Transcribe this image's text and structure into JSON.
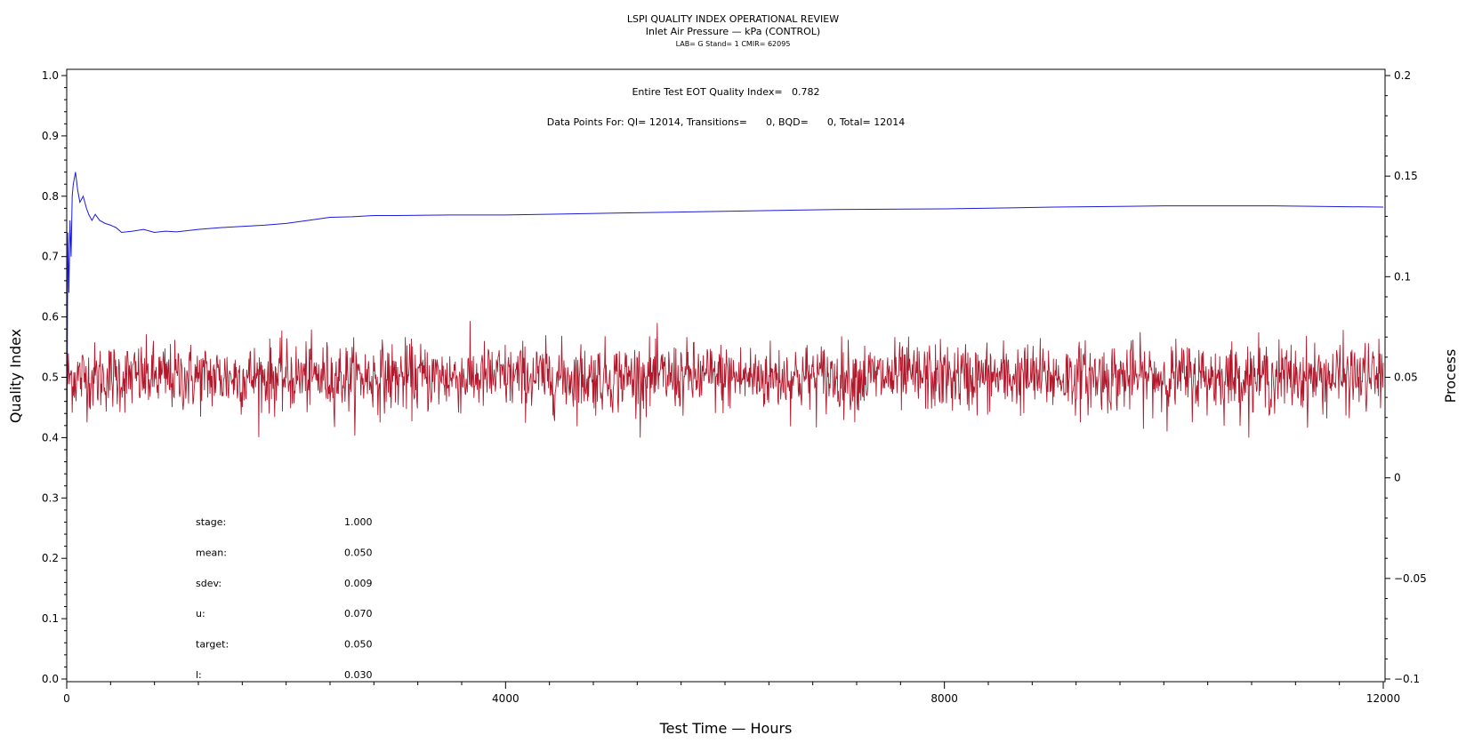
{
  "chart_data": {
    "type": "line",
    "title": "LSPI QUALITY INDEX OPERATIONAL REVIEW",
    "subtitle": "Inlet Air Pressure — kPa (CONTROL)",
    "subsubtitle": "LAB= G Stand= 1 CMIR= 62095",
    "xlabel": "Test Time — Hours",
    "ylabel": "Quality Index",
    "y2label": "Process",
    "xlim": [
      0,
      12000
    ],
    "ylim": [
      0,
      1.0
    ],
    "y2lim": [
      -0.1,
      0.2
    ],
    "x_ticks": [
      0,
      4000,
      8000,
      12000
    ],
    "x_tick_labels": [
      "0",
      "4000",
      "8000",
      "12000"
    ],
    "y_ticks": [
      0.0,
      0.1,
      0.2,
      0.3,
      0.4,
      0.5,
      0.6,
      0.7,
      0.8,
      0.9,
      1.0
    ],
    "y_tick_labels": [
      "0.0",
      "0.1",
      "0.2",
      "0.3",
      "0.4",
      "0.5",
      "0.6",
      "0.7",
      "0.8",
      "0.9",
      "1.0"
    ],
    "y2_ticks": [
      -0.1,
      -0.05,
      0,
      0.05,
      0.1,
      0.15,
      0.2
    ],
    "y2_tick_labels": [
      "−0.1",
      "−0.05",
      "0",
      "0.05",
      "0.1",
      "0.15",
      "0.2"
    ],
    "annotations": {
      "quality_index": "Entire Test EOT Quality Index=   0.782",
      "data_points": "Data Points For: QI= 12014, Transitions=      0, BQD=      0, Total= 12014"
    },
    "stats": [
      {
        "label": "stage:",
        "value": "1.000"
      },
      {
        "label": "mean:",
        "value": "0.050"
      },
      {
        "label": "sdev:",
        "value": "0.009"
      },
      {
        "label": "u:",
        "value": "0.070"
      },
      {
        "label": "target:",
        "value": "0.050"
      },
      {
        "label": "l:",
        "value": "0.030"
      }
    ],
    "series": [
      {
        "axis": "left",
        "color": "#1a1adb",
        "x": [
          0,
          10,
          20,
          30,
          40,
          50,
          60,
          80,
          100,
          120,
          150,
          180,
          200,
          230,
          260,
          300,
          350,
          400,
          450,
          500,
          600,
          700,
          800,
          900,
          1000,
          1200,
          1400,
          1600,
          1800,
          2000,
          2200,
          2400,
          2600,
          2800,
          3000,
          3500,
          4000,
          5000,
          6000,
          7000,
          8000,
          9000,
          10000,
          11000,
          12000
        ],
        "values": [
          0.28,
          0.74,
          0.64,
          0.76,
          0.7,
          0.8,
          0.82,
          0.84,
          0.81,
          0.79,
          0.8,
          0.78,
          0.77,
          0.76,
          0.77,
          0.76,
          0.755,
          0.752,
          0.748,
          0.74,
          0.742,
          0.745,
          0.74,
          0.742,
          0.741,
          0.745,
          0.748,
          0.75,
          0.752,
          0.755,
          0.76,
          0.765,
          0.766,
          0.768,
          0.768,
          0.769,
          0.769,
          0.772,
          0.775,
          0.778,
          0.779,
          0.782,
          0.784,
          0.784,
          0.782
        ]
      },
      {
        "axis": "right",
        "color": "#b2182b",
        "count": 12014,
        "mean": 0.05,
        "sdev": 0.009,
        "range": [
          0.02,
          0.082
        ]
      }
    ],
    "grid": false,
    "legend": "none"
  }
}
